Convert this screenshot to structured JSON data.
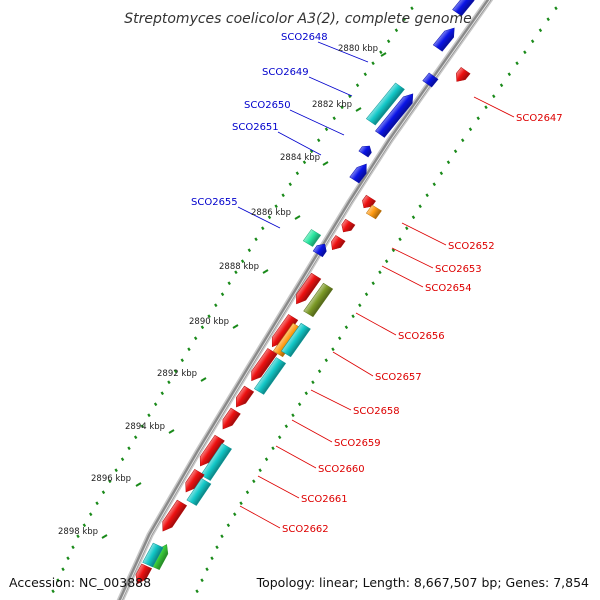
{
  "title": "Streptomyces coelicolor A3(2), complete genome",
  "accession": "Accession: NC_003888",
  "topology": "Topology: linear; Length: 8,667,507 bp; Genes: 7,854",
  "colors": {
    "forward_label": "#0000cc",
    "reverse_label": "#dd0000",
    "blue": "#0a14e6",
    "red": "#ee1111",
    "cyan": "#12c8c8",
    "orange": "#ff9a10",
    "olive": "#7c9a26",
    "mint": "#28e6a0",
    "green": "#3acc3a",
    "track_dots": "#1a8a1a",
    "backbone": "#8a8a8a"
  },
  "kbp_ticks": [
    {
      "label": "2880 kbp"
    },
    {
      "label": "2882 kbp"
    },
    {
      "label": "2884 kbp"
    },
    {
      "label": "2886 kbp"
    },
    {
      "label": "2888 kbp"
    },
    {
      "label": "2890 kbp"
    },
    {
      "label": "2892 kbp"
    },
    {
      "label": "2894 kbp"
    },
    {
      "label": "2896 kbp"
    },
    {
      "label": "2898 kbp"
    }
  ],
  "genes_forward": [
    {
      "label": "SCO2648"
    },
    {
      "label": "SCO2649"
    },
    {
      "label": "SCO2650"
    },
    {
      "label": "SCO2651"
    },
    {
      "label": "SCO2655"
    }
  ],
  "genes_reverse": [
    {
      "label": "SCO2647"
    },
    {
      "label": "SCO2652"
    },
    {
      "label": "SCO2653"
    },
    {
      "label": "SCO2654"
    },
    {
      "label": "SCO2656"
    },
    {
      "label": "SCO2657"
    },
    {
      "label": "SCO2658"
    },
    {
      "label": "SCO2659"
    },
    {
      "label": "SCO2660"
    },
    {
      "label": "SCO2661"
    },
    {
      "label": "SCO2662"
    }
  ]
}
